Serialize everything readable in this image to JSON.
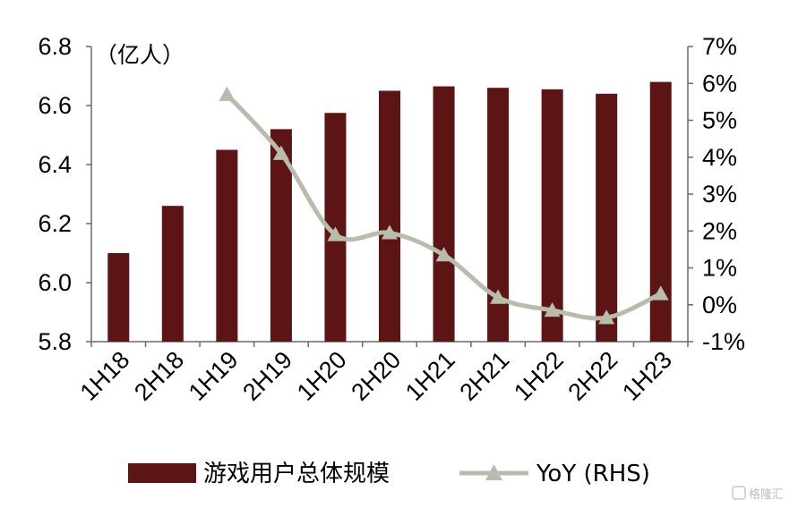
{
  "chart_data": {
    "type": "bar+line",
    "categories": [
      "1H18",
      "2H18",
      "1H19",
      "2H19",
      "1H20",
      "2H20",
      "1H21",
      "2H21",
      "1H22",
      "2H22",
      "1H23"
    ],
    "series": [
      {
        "name": "游戏用户总体规模",
        "type": "bar",
        "axis": "left",
        "color": "#5c1414",
        "values": [
          6.1,
          6.26,
          6.45,
          6.52,
          6.575,
          6.65,
          6.665,
          6.66,
          6.655,
          6.64,
          6.68
        ]
      },
      {
        "name": "YoY (RHS)",
        "type": "line",
        "axis": "right",
        "color": "#b8bcaa",
        "values": [
          null,
          null,
          5.7,
          4.1,
          1.9,
          1.95,
          1.35,
          0.2,
          -0.15,
          -0.35,
          0.3
        ]
      }
    ],
    "left_axis": {
      "unit_label": "（亿人）",
      "ylim": [
        5.8,
        6.8
      ],
      "ticks": [
        "5.8",
        "6.0",
        "6.2",
        "6.4",
        "6.6",
        "6.8"
      ],
      "tick_values": [
        5.8,
        6.0,
        6.2,
        6.4,
        6.6,
        6.8
      ]
    },
    "right_axis": {
      "ylim": [
        -1,
        7
      ],
      "ticks": [
        "-1%",
        "0%",
        "1%",
        "2%",
        "3%",
        "4%",
        "5%",
        "6%",
        "7%"
      ],
      "tick_values": [
        -1,
        0,
        1,
        2,
        3,
        4,
        5,
        6,
        7
      ]
    },
    "grid": false,
    "legend_position": "bottom",
    "x_tick_rotation": "-45deg"
  },
  "legend": {
    "bar_label": "游戏用户总体规模",
    "line_label": "YoY (RHS)"
  },
  "watermark": "格隆汇"
}
